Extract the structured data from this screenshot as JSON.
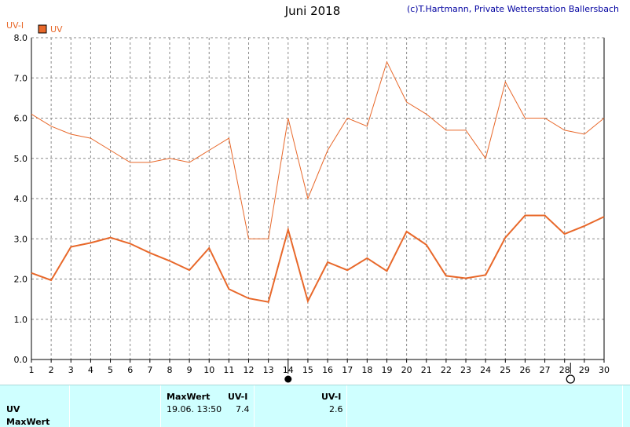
{
  "title": "Juni 2018",
  "copyright": "(c)T.Hartmann, Private Wetterstation Ballersbach",
  "colors": {
    "series": "#e8682a",
    "grid": "#8a8a8a",
    "axis_text": "#000000",
    "panel": "#cfffff"
  },
  "chart_data": {
    "type": "line",
    "ylabel": "UV-I",
    "ylim": [
      0,
      8
    ],
    "yticks": [
      "0.0",
      "1.0",
      "2.0",
      "3.0",
      "4.0",
      "5.0",
      "6.0",
      "7.0",
      "8.0"
    ],
    "x": [
      1,
      2,
      3,
      4,
      5,
      6,
      7,
      8,
      9,
      10,
      11,
      12,
      13,
      14,
      15,
      16,
      17,
      18,
      19,
      20,
      21,
      22,
      23,
      24,
      25,
      26,
      27,
      28,
      29,
      30
    ],
    "grid": true,
    "legend": {
      "label": "UV",
      "position": "top-left"
    },
    "series": [
      {
        "name": "UV",
        "role": "max",
        "values": [
          6.1,
          5.8,
          5.6,
          5.5,
          5.2,
          4.9,
          4.9,
          5.0,
          4.9,
          5.2,
          5.5,
          3.0,
          3.0,
          6.0,
          4.0,
          5.2,
          6.0,
          5.8,
          7.4,
          6.4,
          6.1,
          5.7,
          5.7,
          5.0,
          6.9,
          6.0,
          6.0,
          5.7,
          5.6,
          6.0
        ]
      },
      {
        "name": "UV",
        "role": "mean",
        "values": [
          2.15,
          1.97,
          2.8,
          2.9,
          3.03,
          2.88,
          2.65,
          2.45,
          2.22,
          2.77,
          1.75,
          1.52,
          1.43,
          3.23,
          1.45,
          2.42,
          2.22,
          2.52,
          2.2,
          3.18,
          2.85,
          2.08,
          2.02,
          2.1,
          3.03,
          3.58,
          3.58,
          3.12,
          3.32,
          3.55
        ]
      }
    ],
    "markers": [
      {
        "type": "filled-circle",
        "day": 14
      },
      {
        "type": "open-circle",
        "day": 28.3
      }
    ]
  },
  "bottom_panel": {
    "row_labels": [
      "UV",
      "MaxWert"
    ],
    "max_header": "MaxWert",
    "unit_header": "UV-I",
    "max_datetime": "19.06.  13:50",
    "max_value": "7.4",
    "avg_header": "UV-I",
    "avg_value": "2.6"
  }
}
